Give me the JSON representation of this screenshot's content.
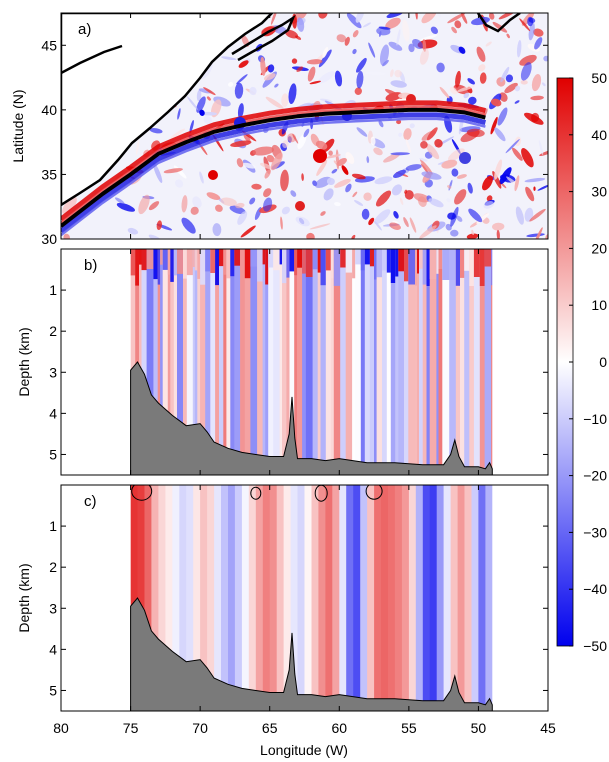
{
  "chart_data": [
    {
      "type": "heatmap",
      "panel_label": "a)",
      "ylabel": "Latitude (N)",
      "xlim": [
        80,
        45
      ],
      "ylim": [
        30,
        47.5
      ],
      "xticks": [
        80,
        75,
        70,
        65,
        60,
        55,
        50,
        45
      ],
      "yticks": [
        30,
        35,
        40,
        45
      ],
      "colormap": "blue-white-red",
      "stream_axis": {
        "name": "mean path",
        "x": [
          80,
          77,
          75,
          73,
          71,
          69,
          67,
          65,
          63,
          61,
          59,
          57,
          55,
          53,
          51,
          49.5
        ],
        "y": [
          31.0,
          33.5,
          35.0,
          36.6,
          37.5,
          38.3,
          38.8,
          39.2,
          39.5,
          39.7,
          39.8,
          39.9,
          40.0,
          40.0,
          39.8,
          39.4
        ]
      }
    },
    {
      "type": "heatmap",
      "panel_label": "b)",
      "ylabel": "Depth (km)",
      "ylim": [
        5.5,
        0
      ],
      "yticks": [
        1,
        2,
        3,
        4,
        5
      ],
      "section_xrange": [
        75,
        49
      ],
      "bathymetry": {
        "x": [
          75,
          74.5,
          74,
          73.5,
          73,
          72,
          71,
          70,
          69.5,
          69,
          68,
          67,
          66,
          65,
          64,
          63.6,
          63.4,
          63.2,
          63,
          62,
          61,
          60,
          58,
          56,
          54,
          52.5,
          52,
          51.7,
          51.4,
          51,
          50,
          49.5,
          49.2,
          49
        ],
        "depth": [
          2.95,
          2.75,
          3.05,
          3.55,
          3.75,
          4.05,
          4.3,
          4.25,
          4.45,
          4.7,
          4.85,
          4.95,
          5.0,
          5.05,
          5.05,
          4.5,
          3.6,
          4.6,
          5.1,
          5.1,
          5.15,
          5.1,
          5.2,
          5.2,
          5.25,
          5.25,
          5.0,
          4.65,
          5.05,
          5.3,
          5.3,
          5.35,
          5.2,
          5.35
        ]
      }
    },
    {
      "type": "heatmap",
      "panel_label": "c)",
      "ylabel": "Depth (km)",
      "xlabel": "Longitude (W)",
      "ylim": [
        5.5,
        0
      ],
      "yticks": [
        1,
        2,
        3,
        4,
        5
      ],
      "section_xrange": [
        75,
        49
      ],
      "columns": {
        "x": [
          75,
          74.5,
          74,
          73.5,
          73,
          72.5,
          72,
          71.5,
          71,
          70.5,
          70,
          69.5,
          69,
          68.5,
          68,
          67.5,
          67,
          66.5,
          66,
          65.5,
          65,
          64.5,
          64,
          63.5,
          63,
          62.5,
          62,
          61.5,
          61,
          60.5,
          60,
          59.5,
          59,
          58.5,
          58,
          57.5,
          57,
          56.5,
          56,
          55.5,
          55,
          54.5,
          54,
          53.5,
          53,
          52.5,
          52,
          51.5,
          51,
          50.5,
          50,
          49.5,
          49
        ],
        "value": [
          40,
          38,
          30,
          15,
          8,
          4,
          -3,
          -8,
          -6,
          5,
          12,
          8,
          -5,
          -12,
          -18,
          -10,
          -2,
          8,
          18,
          25,
          22,
          12,
          4,
          -5,
          -8,
          2,
          12,
          22,
          28,
          18,
          -5,
          -28,
          -35,
          -12,
          12,
          28,
          30,
          28,
          25,
          20,
          8,
          -15,
          -35,
          -38,
          -20,
          -5,
          12,
          20,
          12,
          -10,
          -28,
          -15,
          0
        ]
      }
    }
  ],
  "colorbar": {
    "ticks": [
      50,
      40,
      30,
      20,
      10,
      0,
      -10,
      -20,
      -30,
      -40,
      -50
    ],
    "range": [
      -50,
      50
    ]
  }
}
